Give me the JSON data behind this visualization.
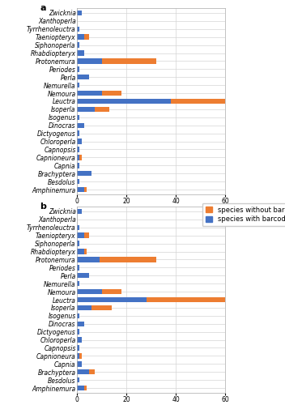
{
  "genera": [
    "Zwicknia",
    "Xanthoperla",
    "Tyrrhenoleuctra",
    "Taeniopteryx",
    "Siphonoperla",
    "Rhabdiopteryx",
    "Protonemura",
    "Periodes",
    "Perla",
    "Nemurella",
    "Nemoura",
    "Leuctra",
    "Isoperla",
    "Isogenus",
    "Dinocras",
    "Dictyogenus",
    "Chloroperla",
    "Capnopsis",
    "Capnioneura",
    "Capnia",
    "Brachyptera",
    "Besdolus",
    "Amphinemura"
  ],
  "panel_a": {
    "with_barcodes": [
      2,
      0,
      1,
      3,
      1,
      3,
      10,
      1,
      5,
      1,
      10,
      38,
      7,
      1,
      3,
      1,
      2,
      1,
      1,
      1,
      6,
      1,
      3
    ],
    "without_barcodes": [
      0,
      0,
      0,
      2,
      0,
      0,
      22,
      0,
      0,
      0,
      8,
      24,
      6,
      0,
      0,
      0,
      0,
      0,
      1,
      0,
      0,
      0,
      1
    ]
  },
  "panel_b": {
    "with_barcodes": [
      2,
      0,
      1,
      3,
      1,
      3,
      9,
      1,
      5,
      1,
      10,
      28,
      6,
      1,
      3,
      1,
      2,
      1,
      1,
      2,
      5,
      1,
      3
    ],
    "without_barcodes": [
      0,
      0,
      0,
      2,
      0,
      1,
      23,
      0,
      0,
      0,
      8,
      33,
      8,
      0,
      0,
      0,
      0,
      0,
      1,
      0,
      2,
      0,
      1
    ]
  },
  "color_with": "#4472c4",
  "color_without": "#ed7d31",
  "label_with": "species with barcodes",
  "label_without": "species without barcodes",
  "xlim": [
    0,
    63
  ],
  "xticks": [
    0,
    20,
    40,
    60
  ],
  "panel_labels": [
    "a",
    "b"
  ],
  "tick_fontsize": 5.5,
  "legend_fontsize": 6.0
}
